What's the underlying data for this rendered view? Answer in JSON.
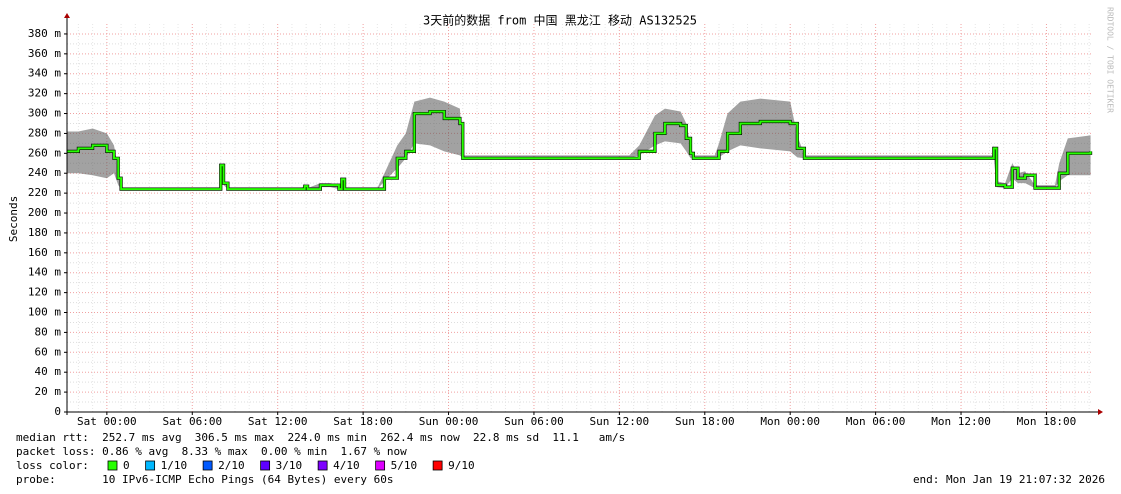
{
  "chart_data": {
    "type": "smokeping",
    "title": "3天前的数据 from 中国 黑龙江 移动 AS132525",
    "ylabel": "Seconds",
    "watermark": "RRDTOOL / TOBI OETIKER",
    "ylim": [
      0,
      0.39
    ],
    "yticks": [
      0,
      {
        "value": 0.02,
        "label": "20 m"
      },
      {
        "value": 0.04,
        "label": "40 m"
      },
      {
        "value": 0.06,
        "label": "60 m"
      },
      {
        "value": 0.08,
        "label": "80 m"
      },
      {
        "value": 0.1,
        "label": "100 m"
      },
      {
        "value": 0.12,
        "label": "120 m"
      },
      {
        "value": 0.14,
        "label": "140 m"
      },
      {
        "value": 0.16,
        "label": "160 m"
      },
      {
        "value": 0.18,
        "label": "180 m"
      },
      {
        "value": 0.2,
        "label": "200 m"
      },
      {
        "value": 0.22,
        "label": "220 m"
      },
      {
        "value": 0.24,
        "label": "240 m"
      },
      {
        "value": 0.26,
        "label": "260 m"
      },
      {
        "value": 0.28,
        "label": "280 m"
      },
      {
        "value": 0.3,
        "label": "300 m"
      },
      {
        "value": 0.32,
        "label": "320 m"
      },
      {
        "value": 0.34,
        "label": "340 m"
      },
      {
        "value": 0.36,
        "label": "360 m"
      },
      {
        "value": 0.38,
        "label": "380 m"
      }
    ],
    "xlim": [
      -2.8,
      69.2
    ],
    "xticks": [
      {
        "value": 0,
        "label": "Sat 00:00"
      },
      {
        "value": 6,
        "label": "Sat 06:00"
      },
      {
        "value": 12,
        "label": "Sat 12:00"
      },
      {
        "value": 18,
        "label": "Sat 18:00"
      },
      {
        "value": 24,
        "label": "Sun 00:00"
      },
      {
        "value": 30,
        "label": "Sun 06:00"
      },
      {
        "value": 36,
        "label": "Sun 12:00"
      },
      {
        "value": 42,
        "label": "Sun 18:00"
      },
      {
        "value": 48,
        "label": "Mon 00:00"
      },
      {
        "value": 54,
        "label": "Mon 06:00"
      },
      {
        "value": 60,
        "label": "Mon 12:00"
      },
      {
        "value": 66,
        "label": "Mon 18:00"
      }
    ],
    "grid": true,
    "median_color": "#26ff00",
    "smoke_color": "#555555",
    "x": [
      -2.8,
      -2,
      -1,
      0,
      0.5,
      0.8,
      1,
      7.9,
      8.0,
      8.2,
      8.5,
      13.7,
      13.9,
      14.1,
      15,
      15.7,
      16.3,
      16.5,
      16.7,
      19,
      19.5,
      20.4,
      21,
      21.6,
      22.7,
      23.7,
      24.8,
      25,
      36.7,
      37.4,
      38.5,
      39.2,
      40.3,
      40.7,
      41,
      41.2,
      42.7,
      43,
      43.6,
      44.5,
      45.9,
      48,
      48.5,
      49,
      62.2,
      62.3,
      62.5,
      63.1,
      63.6,
      64,
      64.5,
      65.2,
      66.6,
      66.9,
      67.5,
      69.1
    ],
    "median": [
      0.262,
      0.265,
      0.268,
      0.262,
      0.255,
      0.235,
      0.224,
      0.224,
      0.248,
      0.23,
      0.224,
      0.224,
      0.227,
      0.224,
      0.228,
      0.228,
      0.224,
      0.234,
      0.224,
      0.224,
      0.235,
      0.255,
      0.262,
      0.3,
      0.302,
      0.295,
      0.29,
      0.255,
      0.255,
      0.262,
      0.28,
      0.29,
      0.288,
      0.275,
      0.26,
      0.255,
      0.255,
      0.262,
      0.28,
      0.29,
      0.292,
      0.29,
      0.265,
      0.255,
      0.255,
      0.265,
      0.228,
      0.226,
      0.245,
      0.235,
      0.238,
      0.225,
      0.225,
      0.24,
      0.26,
      0.262
    ],
    "smoke_low": [
      0.24,
      0.24,
      0.238,
      0.235,
      0.24,
      0.228,
      0.224,
      0.224,
      0.245,
      0.228,
      0.224,
      0.224,
      0.225,
      0.224,
      0.226,
      0.226,
      0.224,
      0.232,
      0.224,
      0.224,
      0.232,
      0.245,
      0.255,
      0.27,
      0.268,
      0.262,
      0.258,
      0.255,
      0.255,
      0.258,
      0.268,
      0.272,
      0.27,
      0.262,
      0.255,
      0.255,
      0.255,
      0.256,
      0.262,
      0.268,
      0.265,
      0.262,
      0.256,
      0.255,
      0.255,
      0.255,
      0.226,
      0.225,
      0.235,
      0.23,
      0.23,
      0.225,
      0.225,
      0.232,
      0.238,
      0.238
    ],
    "smoke_high": [
      0.282,
      0.282,
      0.285,
      0.28,
      0.268,
      0.245,
      0.225,
      0.225,
      0.25,
      0.232,
      0.225,
      0.225,
      0.229,
      0.225,
      0.23,
      0.23,
      0.225,
      0.236,
      0.225,
      0.225,
      0.24,
      0.268,
      0.28,
      0.312,
      0.316,
      0.312,
      0.305,
      0.258,
      0.258,
      0.268,
      0.298,
      0.305,
      0.302,
      0.29,
      0.268,
      0.258,
      0.258,
      0.27,
      0.3,
      0.312,
      0.315,
      0.312,
      0.278,
      0.258,
      0.258,
      0.268,
      0.232,
      0.23,
      0.25,
      0.24,
      0.242,
      0.228,
      0.228,
      0.25,
      0.275,
      0.278
    ],
    "stats": [
      "median rtt:  252.7 ms avg  306.5 ms max  224.0 ms min  262.4 ms now  22.8 ms sd  11.1   am/s",
      "packet loss: 0.86 % avg  8.33 % max  0.00 % min  1.67 % now"
    ],
    "loss_title": "loss color:",
    "loss_legend": [
      {
        "label": "0",
        "color": "#26ff00"
      },
      {
        "label": "1/10",
        "color": "#00b8ff"
      },
      {
        "label": "2/10",
        "color": "#0059ff"
      },
      {
        "label": "3/10",
        "color": "#5e00ff"
      },
      {
        "label": "4/10",
        "color": "#7e00ff"
      },
      {
        "label": "5/10",
        "color": "#dd00ff"
      },
      {
        "label": "9/10",
        "color": "#ff0000"
      }
    ],
    "probe": "probe:       10 IPv6-ICMP Echo Pings (64 Bytes) every 60s",
    "end": "end: Mon Jan 19 21:07:32 2026"
  }
}
